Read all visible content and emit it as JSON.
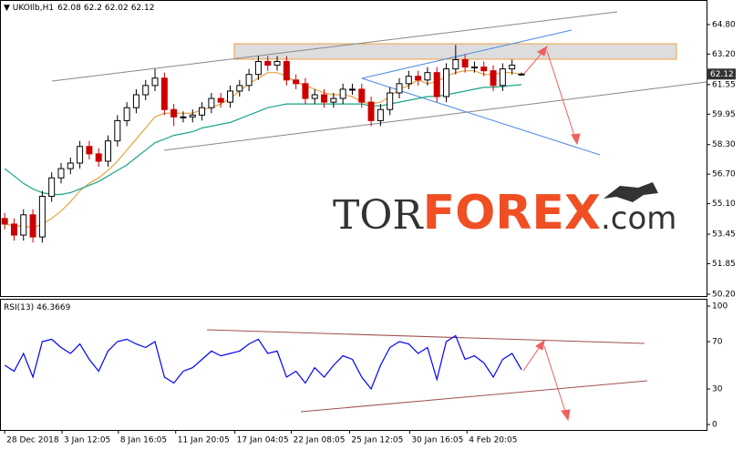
{
  "chart_data": [
    {
      "type": "candlestick",
      "symbol": "UKOIlb,H1",
      "ohlc": [
        62.08,
        62.2,
        62.02,
        62.12
      ],
      "open": [
        54.3,
        54.0,
        53.4,
        54.5,
        53.3,
        55.5,
        56.5,
        57.0,
        57.3,
        58.2,
        57.8,
        57.4,
        58.5,
        59.6,
        60.3,
        61.0,
        61.5,
        61.9,
        60.2,
        59.8,
        59.8,
        59.9,
        60.3,
        60.8,
        60.6,
        61.2,
        61.5,
        62.1,
        62.8,
        62.6,
        62.8,
        61.8,
        61.6,
        60.8,
        61.0,
        60.6,
        60.8,
        61.3,
        61.3,
        60.6,
        59.6,
        60.2,
        61.1,
        61.6,
        62.0,
        61.8,
        62.2,
        60.9,
        62.4,
        62.9,
        62.5,
        62.5,
        62.3,
        61.5,
        62.4,
        62.08
      ],
      "high": [
        54.6,
        54.3,
        54.8,
        54.8,
        55.8,
        56.8,
        57.3,
        57.6,
        58.5,
        58.5,
        58.1,
        58.8,
        59.9,
        60.6,
        61.3,
        61.8,
        62.4,
        62.2,
        60.5,
        60.1,
        60.2,
        60.6,
        61.1,
        61.1,
        61.5,
        61.8,
        62.4,
        63.1,
        63.1,
        63.1,
        63.1,
        62.1,
        61.9,
        61.3,
        61.3,
        61.1,
        61.6,
        61.6,
        61.6,
        60.9,
        60.5,
        61.4,
        61.9,
        62.3,
        62.3,
        62.5,
        62.5,
        62.7,
        63.7,
        63.2,
        62.8,
        62.8,
        62.6,
        62.7,
        62.9,
        62.2
      ],
      "low": [
        53.7,
        53.1,
        53.1,
        53.0,
        53.0,
        55.2,
        56.2,
        56.7,
        57.0,
        57.5,
        57.1,
        57.1,
        58.2,
        59.3,
        60.0,
        60.7,
        61.2,
        59.9,
        59.3,
        59.5,
        59.5,
        59.6,
        60.0,
        60.3,
        60.3,
        60.9,
        61.2,
        61.8,
        62.3,
        62.3,
        61.5,
        61.3,
        60.5,
        60.5,
        60.3,
        60.3,
        60.5,
        61.0,
        60.3,
        59.3,
        59.3,
        59.9,
        60.8,
        61.3,
        61.5,
        61.5,
        60.6,
        60.6,
        62.1,
        62.2,
        62.2,
        62.0,
        61.2,
        61.2,
        62.1,
        62.02
      ],
      "close": [
        54.0,
        53.4,
        54.5,
        53.3,
        55.5,
        56.5,
        57.0,
        57.3,
        58.2,
        57.8,
        57.4,
        58.5,
        59.6,
        60.3,
        61.0,
        61.5,
        61.9,
        60.2,
        59.8,
        59.8,
        59.9,
        60.3,
        60.8,
        60.6,
        61.2,
        61.5,
        62.1,
        62.8,
        62.6,
        62.8,
        61.8,
        61.6,
        60.8,
        61.0,
        60.6,
        60.8,
        61.3,
        61.3,
        60.6,
        59.6,
        60.2,
        61.1,
        61.6,
        62.0,
        61.8,
        62.2,
        60.9,
        62.4,
        62.9,
        62.5,
        62.5,
        62.3,
        61.5,
        62.4,
        62.6,
        62.12
      ],
      "up_color": "#000000",
      "down_color": "#cc0000",
      "series": [
        {
          "color": "#e8a33d",
          "values": [
            54.0,
            53.9,
            53.9,
            53.8,
            54.0,
            54.3,
            54.7,
            55.2,
            55.8,
            56.2,
            56.5,
            56.9,
            57.4,
            58.0,
            58.6,
            59.2,
            59.8,
            60.0,
            60.0,
            60.0,
            60.0,
            60.2,
            60.3,
            60.5,
            60.8,
            61.2,
            61.6,
            61.9,
            62.2,
            62.2,
            62.0,
            61.7,
            61.5,
            61.3,
            61.1,
            61.0,
            61.0,
            60.9,
            60.6,
            60.5,
            60.6,
            60.9,
            61.3,
            61.5,
            61.8,
            61.6,
            61.7,
            62.0,
            62.2,
            62.3,
            62.3,
            62.1,
            62.1,
            62.2,
            62.2,
            62.1
          ]
        },
        {
          "color": "#1aa58a",
          "values": [
            57.0,
            56.6,
            56.2,
            55.9,
            55.7,
            55.6,
            55.6,
            55.7,
            55.9,
            56.1,
            56.3,
            56.6,
            56.9,
            57.2,
            57.6,
            58.0,
            58.4,
            58.6,
            58.8,
            58.9,
            59.0,
            59.2,
            59.3,
            59.4,
            59.5,
            59.7,
            59.9,
            60.1,
            60.3,
            60.4,
            60.5,
            60.5,
            60.5,
            60.5,
            60.5,
            60.5,
            60.5,
            60.5,
            60.5,
            60.4,
            60.4,
            60.5,
            60.6,
            60.7,
            60.8,
            60.9,
            60.9,
            61.0,
            61.1,
            61.2,
            61.3,
            61.4,
            61.4,
            61.45,
            61.5,
            61.55
          ]
        }
      ],
      "ylim": [
        50.1,
        66.13
      ],
      "yticks": [
        {
          "value": 64.8,
          "label": "64.80"
        },
        {
          "value": 63.2,
          "label": "63.20"
        },
        61.55,
        59.95,
        {
          "value": 58.3,
          "label": "58.30"
        },
        {
          "value": 56.7,
          "label": "56.70"
        },
        {
          "value": 55.1,
          "label": "55.10"
        },
        53.45,
        51.85,
        {
          "value": 50.2,
          "label": "50.20"
        }
      ],
      "xlim": [
        -0.5,
        74.7
      ],
      "xticks": [
        {
          "value": 0,
          "label": "28 Dec 2018"
        },
        {
          "value": 6.1,
          "label": "3 Jan 12:05"
        },
        {
          "value": 12.1,
          "label": "8 Jan 16:05"
        },
        {
          "value": 18.2,
          "label": "11 Jan 20:05"
        },
        {
          "value": 24.5,
          "label": "17 Jan 04:05"
        },
        {
          "value": 30.5,
          "label": "22 Jan 08:05"
        },
        {
          "value": 36.7,
          "label": "25 Jan 12:05"
        },
        {
          "value": 43.1,
          "label": "30 Jan 16:05"
        },
        {
          "value": 49.2,
          "label": "4 Feb 20:05"
        }
      ],
      "watermark": [
        "TOR",
        "FOREX",
        ".com"
      ]
    },
    {
      "type": "line",
      "name": "RSI(13)",
      "color": "#0000ff",
      "values": [
        50,
        45,
        60,
        40,
        70,
        72,
        65,
        60,
        68,
        55,
        45,
        62,
        70,
        72,
        68,
        65,
        70,
        40,
        35,
        45,
        48,
        55,
        62,
        58,
        60,
        62,
        68,
        72,
        60,
        62,
        40,
        45,
        35,
        48,
        40,
        50,
        58,
        55,
        40,
        30,
        50,
        65,
        70,
        68,
        60,
        65,
        38,
        70,
        75,
        55,
        58,
        52,
        40,
        55,
        60,
        46.3669
      ],
      "ylim": [
        -4.6,
        106.2
      ],
      "yticks": [
        100,
        70,
        30,
        0
      ],
      "xlim": [
        -0.5,
        74.7
      ]
    }
  ]
}
